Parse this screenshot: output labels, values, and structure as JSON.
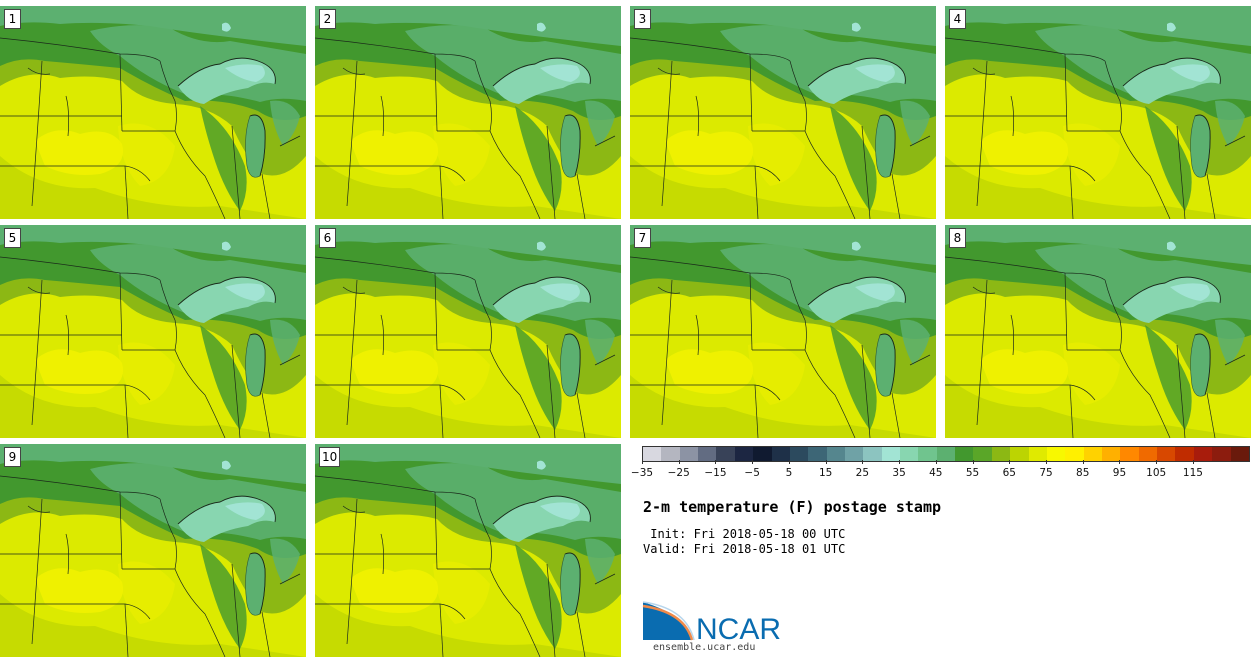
{
  "panels": [
    {
      "label": "1"
    },
    {
      "label": "2"
    },
    {
      "label": "3"
    },
    {
      "label": "4"
    },
    {
      "label": "5"
    },
    {
      "label": "6"
    },
    {
      "label": "7"
    },
    {
      "label": "8"
    },
    {
      "label": "9"
    },
    {
      "label": "10"
    }
  ],
  "colorbar": {
    "colors": [
      "#d8d8e0",
      "#b4b6c0",
      "#8c93a4",
      "#626c82",
      "#384258",
      "#1c2642",
      "#101a30",
      "#1e3048",
      "#2c4a5e",
      "#3d6676",
      "#55868e",
      "#6fa2a6",
      "#8cc4c0",
      "#a2e4d4",
      "#88d6b0",
      "#70c48e",
      "#5cb070",
      "#42982e",
      "#5aa628",
      "#8cb814",
      "#bcd402",
      "#e0ea00",
      "#f8f800",
      "#fff000",
      "#ffd200",
      "#ffb000",
      "#ff8800",
      "#f06a00",
      "#d84800",
      "#c02c00",
      "#a81c0c",
      "#8c1c0e",
      "#6a1a0c"
    ],
    "ticks": [
      "−35",
      "−25",
      "−15",
      "−5",
      "5",
      "15",
      "25",
      "35",
      "45",
      "55",
      "65",
      "75",
      "85",
      "95",
      "105",
      "115"
    ]
  },
  "title": "2-m temperature (F) postage stamp",
  "init": " Init: Fri 2018-05-18 00 UTC",
  "valid": "Valid: Fri 2018-05-18 01 UTC",
  "logo": {
    "text": "NCAR",
    "url": "ensemble.ucar.edu",
    "color": "#0a6cb0"
  },
  "map_colors": {
    "hot": "#f2f200",
    "warm": "#dcea00",
    "mild": "#bcd402",
    "cool": "#8cb814",
    "cooler": "#5aa628",
    "green": "#42982e",
    "teal": "#5cb070",
    "lake": "#88d6b0",
    "lake_deep": "#a2e4d4"
  }
}
